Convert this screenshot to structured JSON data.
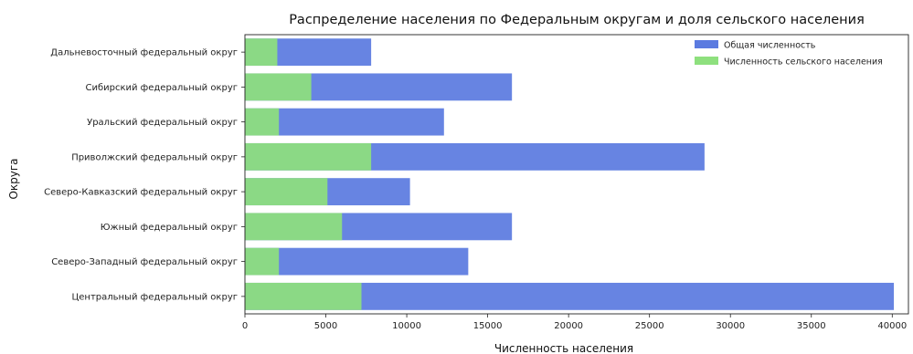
{
  "chart_data": {
    "type": "bar",
    "orientation": "horizontal",
    "title": "Распределение населения по Федеральным округам и доля сельского населения",
    "xlabel": "Численность населения",
    "ylabel": "Округа",
    "xlim": [
      0,
      41000
    ],
    "xticks": [
      0,
      5000,
      10000,
      15000,
      20000,
      25000,
      30000,
      35000,
      40000
    ],
    "xtick_labels": [
      "0",
      "5000",
      "10000",
      "15000",
      "20000",
      "25000",
      "30000",
      "35000",
      "40000"
    ],
    "categories": [
      "Центральный федеральный округ",
      "Северо-Западный федеральный округ",
      "Южный федеральный округ",
      "Северо-Кавказский федеральный округ",
      "Приволжский федеральный округ",
      "Уральский федеральный округ",
      "Сибирский федеральный округ",
      "Дальневосточный федеральный округ"
    ],
    "series": [
      {
        "name": "Общая численность",
        "color": "#5b7be0",
        "values": [
          40100,
          13800,
          16500,
          10200,
          28400,
          12300,
          16500,
          7800
        ]
      },
      {
        "name": "Численность сельского населения",
        "color": "#8ee07e",
        "values": [
          7200,
          2100,
          6000,
          5100,
          7800,
          2100,
          4100,
          2000
        ]
      }
    ],
    "legend_position": "top-right",
    "grid": false
  }
}
